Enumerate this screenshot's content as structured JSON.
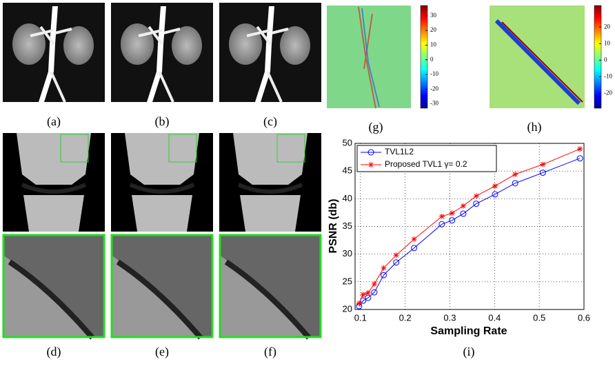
{
  "figure": {
    "captions": [
      "(a)",
      "(b)",
      "(c)",
      "(d)",
      "(e)",
      "(f)",
      "(g)",
      "(h)",
      "(i)"
    ]
  },
  "colorbars": [
    {
      "clim": [
        -33,
        37
      ],
      "ticks": [
        30,
        20,
        10,
        0,
        -10,
        -20,
        -30
      ]
    },
    {
      "clim": [
        -29,
        33
      ],
      "ticks": [
        20,
        10,
        0,
        -10,
        -20
      ]
    }
  ],
  "chart_data": {
    "type": "line",
    "xlabel": "Sampling Rate",
    "ylabel": "PSNR (db)",
    "x": [
      0.097,
      0.106,
      0.117,
      0.131,
      0.152,
      0.18,
      0.22,
      0.282,
      0.305,
      0.33,
      0.359,
      0.401,
      0.446,
      0.508,
      0.591
    ],
    "series": [
      {
        "name": "TVL1L2",
        "color": "#0000ff",
        "marker": "circle",
        "values": [
          20.6,
          21.6,
          22.1,
          23.1,
          26.2,
          28.5,
          31.1,
          35.4,
          36.1,
          37.3,
          39.1,
          40.8,
          42.8,
          44.7,
          47.3
        ]
      },
      {
        "name": "Proposed TVL1 γ= 0.2",
        "color": "#ff0000",
        "marker": "star",
        "values": [
          21.1,
          22.7,
          23.0,
          24.6,
          27.5,
          29.8,
          32.7,
          36.8,
          37.4,
          38.7,
          40.5,
          42.3,
          44.4,
          46.2,
          49.0
        ]
      }
    ],
    "xlim": [
      0.088,
      0.6
    ],
    "ylim": [
      20,
      50
    ],
    "xticks": [
      0.1,
      0.2,
      0.3,
      0.4,
      0.5,
      0.6
    ],
    "yticks": [
      20,
      25,
      30,
      35,
      40,
      45,
      50
    ],
    "grid": true,
    "legend": "upper left"
  }
}
